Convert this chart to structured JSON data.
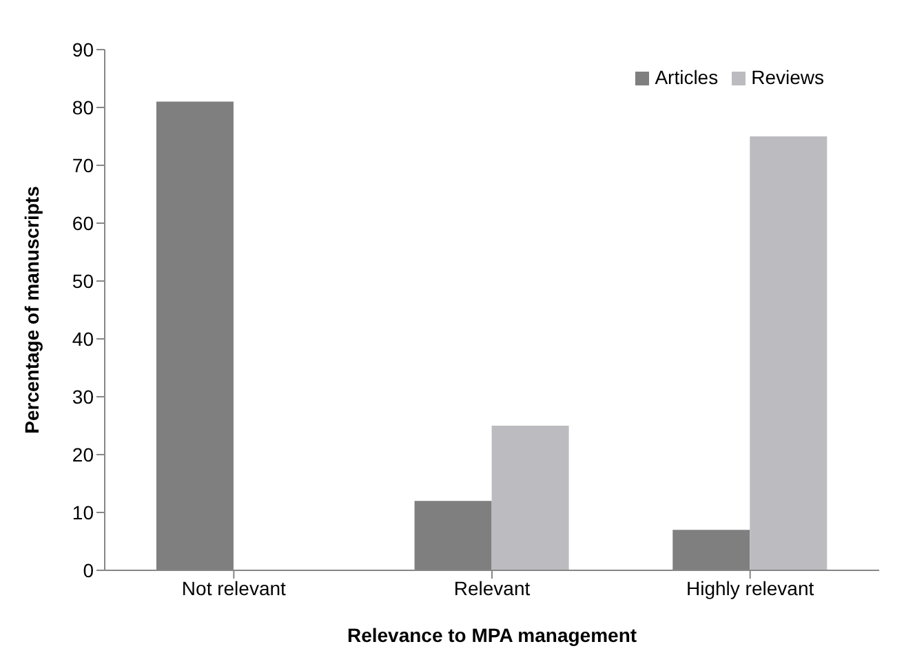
{
  "chart_data": {
    "type": "bar",
    "xlabel": "Relevance to MPA management",
    "ylabel": "Percentage of manuscripts",
    "categories": [
      "Not relevant",
      "Relevant",
      "Highly relevant"
    ],
    "series": [
      {
        "name": "Articles",
        "color": "#7f7f80",
        "values": [
          81,
          12,
          7
        ]
      },
      {
        "name": "Reviews",
        "color": "#bcbcc0",
        "values": [
          0,
          25,
          75
        ]
      }
    ],
    "ylim": [
      0,
      90
    ],
    "yticks": [
      0,
      10,
      20,
      30,
      40,
      50,
      60,
      70,
      80,
      90
    ],
    "grid": false,
    "legend": "top right"
  }
}
